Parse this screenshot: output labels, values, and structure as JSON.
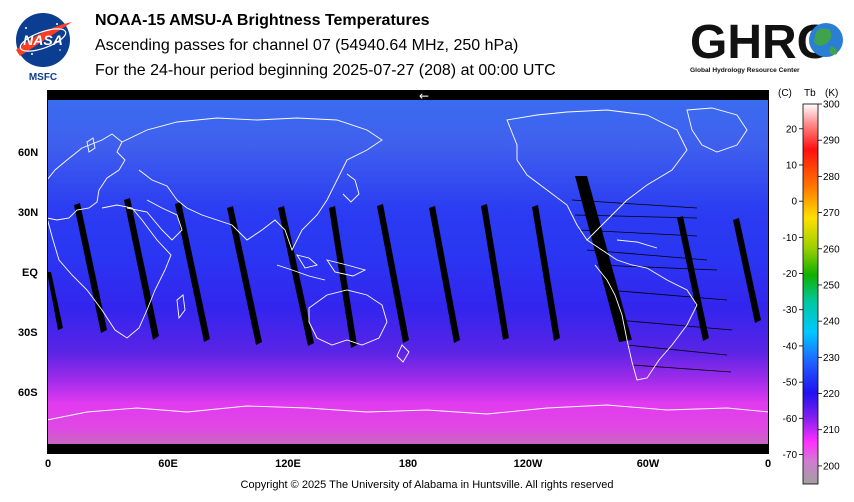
{
  "header": {
    "title": "NOAA-15 AMSU-A Brightness Temperatures",
    "subtitle": "Ascending passes for channel 07 (54940.64 MHz, 250 hPa)",
    "period": "For the 24-hour period beginning 2025-07-27 (208) at 00:00 UTC"
  },
  "nasa_logo": {
    "text": "NASA",
    "caption": "MSFC"
  },
  "ghrc_logo": {
    "text": "GHRC",
    "caption": "Global Hydrology Resource Center"
  },
  "map": {
    "lat_labels": [
      "60N",
      "30N",
      "EQ",
      "30S",
      "60S"
    ],
    "lon_labels": [
      "0",
      "60E",
      "120E",
      "180",
      "120W",
      "60W",
      "0"
    ],
    "arrow": "←"
  },
  "colorbar": {
    "header_c": "(C)",
    "header_tb": "Tb",
    "header_k": "(K)",
    "celsius_ticks": [
      "20",
      "10",
      "0",
      "-10",
      "-20",
      "-30",
      "-40",
      "-50",
      "-60",
      "-70"
    ],
    "kelvin_ticks": [
      "300",
      "290",
      "280",
      "270",
      "260",
      "250",
      "240",
      "230",
      "220",
      "210",
      "200"
    ],
    "min_k": 195,
    "max_k": 300
  },
  "footer": {
    "copyright": "Copyright © 2025 The University of Alabama in Huntsville.  All rights reserved"
  },
  "colors": {
    "frame": "#000000",
    "coast": "#ffffff",
    "swath_gap": "#000000"
  }
}
